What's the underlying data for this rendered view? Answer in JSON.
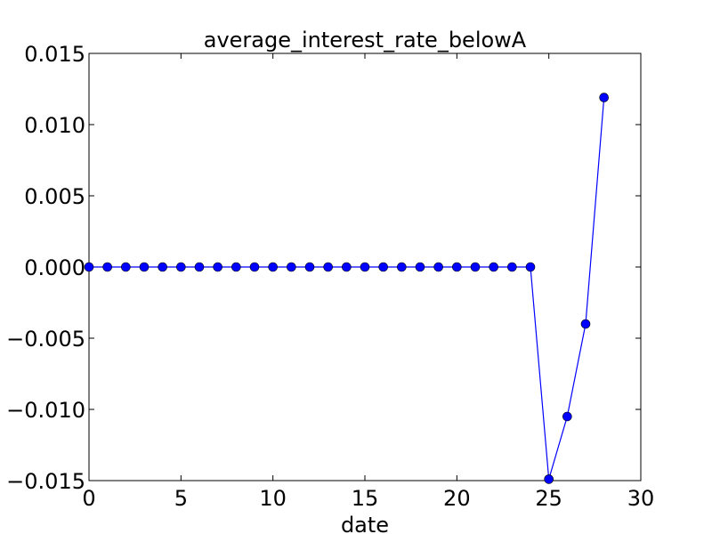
{
  "chart_data": {
    "type": "line",
    "title": "average_interest_rate_belowA",
    "xlabel": "date",
    "ylabel": "",
    "xlim": [
      0,
      30
    ],
    "ylim": [
      -0.015,
      0.015
    ],
    "xticks": [
      0,
      5,
      10,
      15,
      20,
      25,
      30
    ],
    "xtick_labels": [
      "0",
      "5",
      "10",
      "15",
      "20",
      "25",
      "30"
    ],
    "yticks": [
      -0.015,
      -0.01,
      -0.005,
      0,
      0.005,
      0.01,
      0.015
    ],
    "ytick_labels": [
      "−0.015",
      "−0.010",
      "−0.005",
      "0.000",
      "0.005",
      "0.010",
      "0.015"
    ],
    "grid": false,
    "series": [
      {
        "color": "#0000ff",
        "marker": "circle",
        "x": [
          0,
          1,
          2,
          3,
          4,
          5,
          6,
          7,
          8,
          9,
          10,
          11,
          12,
          13,
          14,
          15,
          16,
          17,
          18,
          19,
          20,
          21,
          22,
          23,
          24,
          25,
          26,
          27,
          28
        ],
        "y": [
          0,
          0,
          0,
          0,
          0,
          0,
          0,
          0,
          0,
          0,
          0,
          0,
          0,
          0,
          0,
          0,
          0,
          0,
          0,
          0,
          0,
          0,
          0,
          0,
          0,
          -0.0149,
          -0.0105,
          -0.004,
          0.0119
        ]
      }
    ]
  }
}
